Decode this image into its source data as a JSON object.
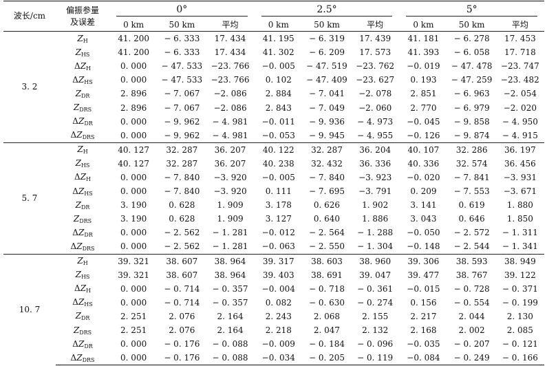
{
  "table": {
    "header": {
      "wavelength_label": "波长/cm",
      "param_label_line1": "偏振参量",
      "param_label_line2": "及误差",
      "angles": [
        "0°",
        "2.5°",
        "5°"
      ],
      "subcols": [
        "0 km",
        "50 km",
        "平均"
      ]
    },
    "groups": [
      {
        "wavelength": "3. 2",
        "rows": [
          {
            "delta": "",
            "sym": "Z",
            "sub": "H",
            "values": [
              "41. 200",
              "− 6. 333",
              "17. 434",
              "41. 195",
              "− 6. 319",
              "17. 439",
              "41. 181",
              "− 6. 278",
              "17. 453"
            ]
          },
          {
            "delta": "",
            "sym": "Z",
            "sub": "HS",
            "values": [
              "41. 200",
              "− 6. 333",
              "17. 434",
              "41. 302",
              "− 6. 209",
              "17. 573",
              "41. 393",
              "− 6. 058",
              "17. 718"
            ]
          },
          {
            "delta": "Δ",
            "sym": "Z",
            "sub": "H",
            "values": [
              "0. 000",
              "− 47. 533",
              "−23. 766",
              "−0. 005",
              "− 47. 519",
              "−23. 762",
              "−0. 019",
              "− 47. 478",
              "−23. 747"
            ]
          },
          {
            "delta": "Δ",
            "sym": "Z",
            "sub": "HS",
            "values": [
              "0. 000",
              "− 47. 533",
              "−23. 766",
              "0. 102",
              "− 47. 409",
              "−23. 627",
              "0. 193",
              "− 47. 259",
              "−23. 482"
            ]
          },
          {
            "delta": "",
            "sym": "Z",
            "sub": "DR",
            "values": [
              "2. 896",
              "− 7. 067",
              "−2. 086",
              "2. 884",
              "− 7. 041",
              "−2. 078",
              "2. 851",
              "− 6. 963",
              "−2. 054"
            ]
          },
          {
            "delta": "",
            "sym": "Z",
            "sub": "DRS",
            "values": [
              "2. 896",
              "− 7. 067",
              "−2. 086",
              "2. 843",
              "− 7. 049",
              "−2. 060",
              "2. 770",
              "− 6. 979",
              "−2. 020"
            ]
          },
          {
            "delta": "Δ",
            "sym": "Z",
            "sub": "DR",
            "values": [
              "0. 000",
              "− 9. 962",
              "− 4. 981",
              "−0. 011",
              "− 9. 936",
              "− 4. 973",
              "−0. 045",
              "− 9. 858",
              "− 4. 950"
            ]
          },
          {
            "delta": "Δ",
            "sym": "Z",
            "sub": "DRS",
            "values": [
              "0. 000",
              "− 9. 962",
              "− 4. 981",
              "−0. 053",
              "− 9. 945",
              "− 4. 955",
              "−0. 126",
              "− 9. 874",
              "− 4. 915"
            ]
          }
        ]
      },
      {
        "wavelength": "5. 7",
        "rows": [
          {
            "delta": "",
            "sym": "Z",
            "sub": "H",
            "values": [
              "40. 127",
              "32. 287",
              "36. 207",
              "40. 122",
              "32. 287",
              "36. 204",
              "40. 107",
              "32. 286",
              "36. 197"
            ]
          },
          {
            "delta": "",
            "sym": "Z",
            "sub": "HS",
            "values": [
              "40. 127",
              "32. 287",
              "36. 207",
              "40. 238",
              "32. 432",
              "36. 336",
              "40. 336",
              "32. 574",
              "36. 456"
            ]
          },
          {
            "delta": "Δ",
            "sym": "Z",
            "sub": "H",
            "values": [
              "0. 000",
              "− 7. 840",
              "−3. 920",
              "−0. 005",
              "− 7. 840",
              "−3. 923",
              "−0. 020",
              "− 7. 841",
              "−3. 931"
            ]
          },
          {
            "delta": "Δ",
            "sym": "Z",
            "sub": "HS",
            "values": [
              "0. 000",
              "− 7. 840",
              "−3. 920",
              "0. 111",
              "− 7. 695",
              "−3. 791",
              "0. 209",
              "− 7. 553",
              "−3. 671"
            ]
          },
          {
            "delta": "",
            "sym": "Z",
            "sub": "DR",
            "values": [
              "3. 190",
              "0. 628",
              "1. 909",
              "3. 178",
              "0. 626",
              "1. 902",
              "3. 141",
              "0. 619",
              "1. 880"
            ]
          },
          {
            "delta": "",
            "sym": "Z",
            "sub": "DRS",
            "values": [
              "3. 190",
              "0. 628",
              "1. 909",
              "3. 127",
              "0. 640",
              "1. 886",
              "3. 043",
              "0. 646",
              "1. 850"
            ]
          },
          {
            "delta": "Δ",
            "sym": "Z",
            "sub": "DR",
            "values": [
              "0. 000",
              "− 2. 562",
              "− 1. 281",
              "−0. 012",
              "− 2. 564",
              "− 1. 288",
              "−0. 050",
              "− 2. 572",
              "− 1. 311"
            ]
          },
          {
            "delta": "Δ",
            "sym": "Z",
            "sub": "DRS",
            "values": [
              "0. 000",
              "− 2. 562",
              "− 1. 281",
              "−0. 063",
              "− 2. 550",
              "− 1. 304",
              "−0. 148",
              "− 2. 544",
              "− 1. 341"
            ]
          }
        ]
      },
      {
        "wavelength": "10. 7",
        "rows": [
          {
            "delta": "",
            "sym": "Z",
            "sub": "H",
            "values": [
              "39. 321",
              "38. 607",
              "38. 964",
              "39. 317",
              "38. 603",
              "38. 960",
              "39. 306",
              "38. 593",
              "38. 949"
            ]
          },
          {
            "delta": "",
            "sym": "Z",
            "sub": "HS",
            "values": [
              "39. 321",
              "38. 607",
              "38. 964",
              "39. 403",
              "38. 691",
              "39. 047",
              "39. 477",
              "38. 767",
              "39. 122"
            ]
          },
          {
            "delta": "Δ",
            "sym": "Z",
            "sub": "H",
            "values": [
              "0. 000",
              "− 0. 714",
              "− 0. 357",
              "−0. 004",
              "− 0. 718",
              "− 0. 361",
              "−0. 015",
              "− 0. 728",
              "− 0. 371"
            ]
          },
          {
            "delta": "Δ",
            "sym": "Z",
            "sub": "HS",
            "values": [
              "0. 000",
              "− 0. 714",
              "− 0. 357",
              "0. 082",
              "− 0. 630",
              "− 0. 274",
              "0. 156",
              "− 0. 554",
              "− 0. 199"
            ]
          },
          {
            "delta": "",
            "sym": "Z",
            "sub": "DR",
            "values": [
              "2. 251",
              "2. 076",
              "2. 164",
              "2. 243",
              "2. 068",
              "2. 155",
              "2. 217",
              "2. 044",
              "2. 130"
            ]
          },
          {
            "delta": "",
            "sym": "Z",
            "sub": "DRS",
            "values": [
              "2. 251",
              "2. 076",
              "2. 164",
              "2. 218",
              "2. 047",
              "2. 132",
              "2. 168",
              "2. 002",
              "2. 085"
            ]
          },
          {
            "delta": "Δ",
            "sym": "Z",
            "sub": "DR",
            "values": [
              "0. 000",
              "− 0. 176",
              "− 0. 088",
              "−0. 009",
              "− 0. 184",
              "− 0. 096",
              "−0. 035",
              "− 0. 207",
              "− 0. 121"
            ]
          },
          {
            "delta": "Δ",
            "sym": "Z",
            "sub": "DRS",
            "values": [
              "0. 000",
              "− 0. 176",
              "− 0. 088",
              "−0. 034",
              "− 0. 205",
              "− 0. 119",
              "−0. 084",
              "− 0. 249",
              "− 0. 166"
            ]
          }
        ]
      }
    ]
  }
}
